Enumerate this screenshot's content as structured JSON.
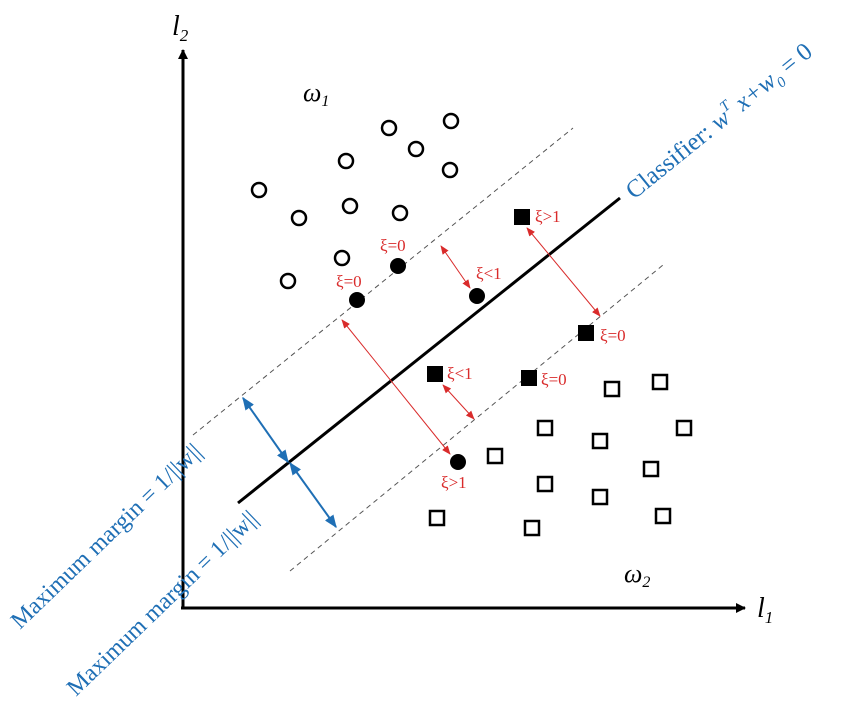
{
  "axes": {
    "y_label": "l",
    "y_sub": "2",
    "x_label": "l",
    "x_sub": "1"
  },
  "classes": {
    "omega1": {
      "symbol": "ω",
      "sub": "1"
    },
    "omega2": {
      "symbol": "ω",
      "sub": "2"
    }
  },
  "classifier": {
    "prefix": "Classifier: ",
    "w": "w",
    "sup": "T",
    "x": " x+w",
    "sub0": "0",
    "eq": " = 0"
  },
  "margins": {
    "upper_text": "Maximum margin = 1/||w||",
    "lower_text": "Maximum margin = 1/||w||"
  },
  "slack_labels": {
    "xi0_a": "ξ=0",
    "xi0_b": "ξ=0",
    "xi_lt1_a": "ξ<1",
    "xi_gt1_a": "ξ>1",
    "xi0_c": "ξ=0",
    "xi_lt1_b": "ξ<1",
    "xi0_d": "ξ=0",
    "xi_gt1_b": "ξ>1"
  },
  "colors": {
    "axis": "#000000",
    "slack": "#d92b2b",
    "margin": "#1f6fb5",
    "dashed": "#555555"
  }
}
